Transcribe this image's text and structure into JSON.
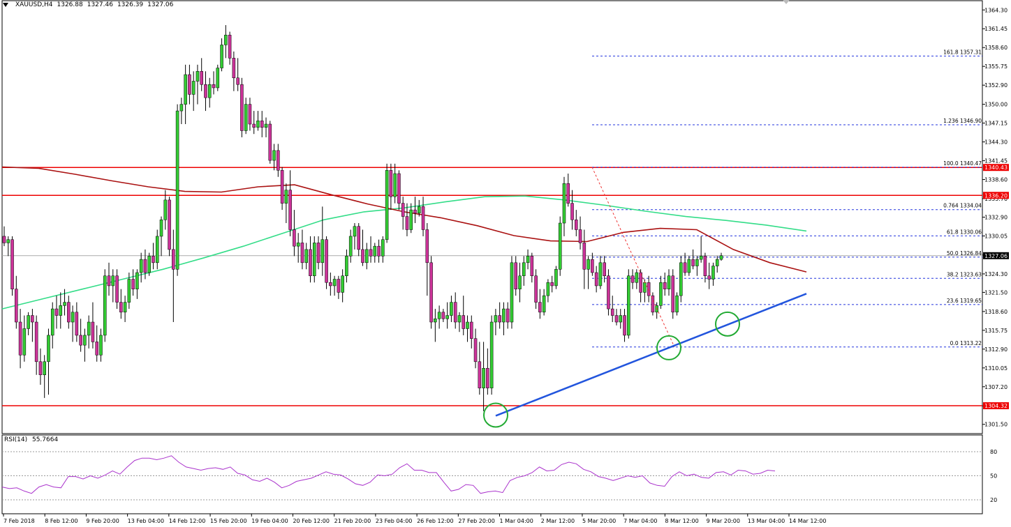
{
  "header": {
    "symbol": "XAUUSD,H4",
    "open": "1326.88",
    "high": "1327.46",
    "low": "1326.39",
    "close": "1327.06"
  },
  "rsi_panel": {
    "name": "RSI(14)",
    "value": "55.7664",
    "levels": [
      80,
      50,
      20
    ]
  },
  "colors": {
    "bull_candle": "#33cc33",
    "bear_candle": "#cc3399",
    "wick": "#000000",
    "sma_green": "#33dd88",
    "sma_red": "#aa1111",
    "level_line": "#ee0000",
    "fib_line": "#2233dd",
    "trend_line": "#2255dd",
    "rsi_line": "#aa33cc",
    "circle": "#22aa33"
  },
  "chart_data": {
    "type": "candlestick",
    "y_range": [
      1300.1,
      1365.7
    ],
    "price_ticks": [
      "1364.30",
      "1361.45",
      "1358.60",
      "1355.75",
      "1352.90",
      "1350.00",
      "1347.15",
      "1344.30",
      "1341.45",
      "1338.60",
      "1335.70",
      "1332.90",
      "1330.05",
      "1327.15",
      "1324.30",
      "1321.50",
      "1318.60",
      "1315.75",
      "1312.90",
      "1310.05",
      "1307.20",
      "1304.30",
      "1301.50"
    ],
    "time_labels": [
      "7 Feb 2018",
      "8 Feb 12:00",
      "9 Feb 20:00",
      "13 Feb 04:00",
      "14 Feb 12:00",
      "15 Feb 20:00",
      "19 Feb 04:00",
      "20 Feb 12:00",
      "21 Feb 20:00",
      "23 Feb 04:00",
      "26 Feb 12:00",
      "27 Feb 20:00",
      "1 Mar 04:00",
      "2 Mar 12:00",
      "5 Mar 20:00",
      "7 Mar 04:00",
      "8 Mar 12:00",
      "9 Mar 20:00",
      "13 Mar 04:00",
      "14 Mar 12:00"
    ],
    "horizontal_levels": [
      {
        "price": 1340.43,
        "label": "1340.43"
      },
      {
        "price": 1336.2,
        "label": "1336.20"
      },
      {
        "price": 1304.32,
        "label": "1304.32"
      }
    ],
    "current_price": {
      "price": 1327.06,
      "label": "1327.06"
    },
    "fibonacci": [
      {
        "price": 1357.31,
        "label": "161.8 1357.31"
      },
      {
        "price": 1346.9,
        "label": "1.236 1346.90"
      },
      {
        "price": 1340.47,
        "label": "100.0 1340.47"
      },
      {
        "price": 1334.04,
        "label": "0.764 1334.04"
      },
      {
        "price": 1330.06,
        "label": "61.8 1330.06"
      },
      {
        "price": 1326.84,
        "label": "50.0 1326.84"
      },
      {
        "price": 1323.63,
        "label": "38.2 1323.63"
      },
      {
        "price": 1319.65,
        "label": "23.6 1319.65"
      },
      {
        "price": 1313.22,
        "label": "0.0 1313.22"
      }
    ],
    "bar_count": 192,
    "ohlc": [
      [
        1330.0,
        1331.5,
        1328.5,
        1329.0
      ],
      [
        1329.0,
        1330.0,
        1327.0,
        1329.5
      ],
      [
        1329.5,
        1330.0,
        1321.0,
        1322.0
      ],
      [
        1322.0,
        1324.0,
        1316.0,
        1317.0
      ],
      [
        1317.0,
        1319.0,
        1310.0,
        1312.0
      ],
      [
        1312.0,
        1318.0,
        1311.0,
        1316.0
      ],
      [
        1316.0,
        1318.5,
        1315.0,
        1318.0
      ],
      [
        1318.0,
        1319.0,
        1314.0,
        1317.0
      ],
      [
        1317.0,
        1318.0,
        1309.0,
        1311.0
      ],
      [
        1311.0,
        1313.0,
        1307.5,
        1309.0
      ],
      [
        1309.0,
        1312.0,
        1305.5,
        1311.0
      ],
      [
        1311.0,
        1316.0,
        1306.0,
        1315.0
      ],
      [
        1315.0,
        1320.0,
        1313.0,
        1319.0
      ],
      [
        1319.0,
        1321.0,
        1316.0,
        1318.0
      ],
      [
        1318.0,
        1321.5,
        1316.0,
        1319.5
      ],
      [
        1319.5,
        1322.0,
        1318.0,
        1320.0
      ],
      [
        1320.0,
        1321.0,
        1316.0,
        1317.0
      ],
      [
        1317.0,
        1319.5,
        1314.0,
        1318.5
      ],
      [
        1318.5,
        1320.0,
        1314.0,
        1315.0
      ],
      [
        1315.0,
        1317.5,
        1312.5,
        1313.5
      ],
      [
        1313.5,
        1316.0,
        1311.0,
        1315.0
      ],
      [
        1315.0,
        1318.0,
        1313.0,
        1317.0
      ],
      [
        1317.0,
        1320.0,
        1313.0,
        1314.0
      ],
      [
        1314.0,
        1316.5,
        1311.0,
        1312.0
      ],
      [
        1312.0,
        1316.0,
        1311.0,
        1315.0
      ],
      [
        1315.0,
        1325.0,
        1314.0,
        1324.0
      ],
      [
        1324.0,
        1326.0,
        1321.0,
        1322.5
      ],
      [
        1322.5,
        1325.0,
        1320.0,
        1324.0
      ],
      [
        1324.0,
        1325.0,
        1319.0,
        1320.0
      ],
      [
        1320.0,
        1322.0,
        1317.5,
        1318.5
      ],
      [
        1318.5,
        1321.0,
        1317.0,
        1320.0
      ],
      [
        1320.0,
        1324.5,
        1319.0,
        1323.5
      ],
      [
        1323.5,
        1325.0,
        1321.0,
        1322.0
      ],
      [
        1322.0,
        1325.0,
        1320.5,
        1324.5
      ],
      [
        1324.5,
        1327.5,
        1323.0,
        1326.5
      ],
      [
        1326.5,
        1328.0,
        1323.5,
        1324.5
      ],
      [
        1324.5,
        1327.5,
        1324.0,
        1327.0
      ],
      [
        1327.0,
        1329.0,
        1325.0,
        1326.0
      ],
      [
        1326.0,
        1331.0,
        1325.0,
        1330.0
      ],
      [
        1330.0,
        1333.0,
        1327.0,
        1332.5
      ],
      [
        1332.5,
        1337.0,
        1331.0,
        1335.5
      ],
      [
        1335.5,
        1336.0,
        1327.0,
        1328.0
      ],
      [
        1328.0,
        1331.0,
        1317.0,
        1325.0
      ],
      [
        1325.0,
        1350.0,
        1324.0,
        1349.0
      ],
      [
        1349.0,
        1351.0,
        1347.0,
        1350.0
      ],
      [
        1350.0,
        1356.0,
        1347.0,
        1354.5
      ],
      [
        1354.5,
        1356.0,
        1350.0,
        1351.5
      ],
      [
        1351.5,
        1355.0,
        1349.0,
        1353.5
      ],
      [
        1353.5,
        1356.0,
        1350.0,
        1355.0
      ],
      [
        1355.0,
        1357.0,
        1352.0,
        1353.0
      ],
      [
        1353.0,
        1355.0,
        1349.0,
        1351.0
      ],
      [
        1351.0,
        1354.0,
        1349.5,
        1353.0
      ],
      [
        1353.0,
        1355.0,
        1351.5,
        1352.5
      ],
      [
        1352.5,
        1356.0,
        1352.0,
        1355.5
      ],
      [
        1355.5,
        1360.0,
        1355.0,
        1359.0
      ],
      [
        1359.0,
        1362.0,
        1357.0,
        1360.5
      ],
      [
        1360.5,
        1361.0,
        1356.0,
        1357.0
      ],
      [
        1357.0,
        1358.0,
        1352.0,
        1354.0
      ],
      [
        1354.0,
        1357.0,
        1352.0,
        1353.0
      ],
      [
        1353.0,
        1354.0,
        1345.0,
        1346.0
      ],
      [
        1346.0,
        1351.0,
        1345.5,
        1350.0
      ],
      [
        1350.0,
        1351.0,
        1346.0,
        1347.0
      ],
      [
        1347.0,
        1349.0,
        1345.5,
        1346.5
      ],
      [
        1346.5,
        1349.0,
        1346.0,
        1347.5
      ],
      [
        1347.5,
        1349.0,
        1345.0,
        1346.5
      ],
      [
        1346.5,
        1348.0,
        1345.0,
        1347.0
      ],
      [
        1347.0,
        1347.5,
        1341.0,
        1341.5
      ],
      [
        1341.5,
        1344.0,
        1340.0,
        1343.0
      ],
      [
        1343.0,
        1344.0,
        1339.0,
        1340.0
      ],
      [
        1340.0,
        1340.5,
        1334.0,
        1335.0
      ],
      [
        1335.0,
        1338.0,
        1332.0,
        1337.0
      ],
      [
        1337.0,
        1340.0,
        1330.0,
        1331.0
      ],
      [
        1331.0,
        1334.0,
        1327.0,
        1328.5
      ],
      [
        1328.5,
        1330.5,
        1326.0,
        1329.0
      ],
      [
        1329.0,
        1331.0,
        1325.0,
        1326.0
      ],
      [
        1326.0,
        1329.0,
        1325.0,
        1328.0
      ],
      [
        1328.0,
        1330.0,
        1323.0,
        1324.0
      ],
      [
        1324.0,
        1330.0,
        1323.0,
        1329.0
      ],
      [
        1329.0,
        1330.0,
        1325.0,
        1326.0
      ],
      [
        1326.0,
        1334.5,
        1324.0,
        1329.5
      ],
      [
        1329.5,
        1330.0,
        1322.0,
        1323.0
      ],
      [
        1323.0,
        1324.5,
        1321.0,
        1322.5
      ],
      [
        1322.5,
        1324.0,
        1321.0,
        1323.5
      ],
      [
        1323.5,
        1324.0,
        1320.5,
        1321.5
      ],
      [
        1321.5,
        1325.0,
        1320.0,
        1324.0
      ],
      [
        1324.0,
        1328.0,
        1323.0,
        1327.0
      ],
      [
        1327.0,
        1331.0,
        1326.0,
        1330.0
      ],
      [
        1330.0,
        1332.0,
        1328.0,
        1331.5
      ],
      [
        1331.5,
        1332.0,
        1327.0,
        1328.0
      ],
      [
        1328.0,
        1331.0,
        1325.5,
        1326.0
      ],
      [
        1326.0,
        1329.0,
        1325.0,
        1328.0
      ],
      [
        1328.0,
        1330.0,
        1326.0,
        1327.0
      ],
      [
        1327.0,
        1329.0,
        1326.0,
        1328.5
      ],
      [
        1328.5,
        1329.5,
        1326.0,
        1327.0
      ],
      [
        1327.0,
        1330.0,
        1326.0,
        1329.5
      ],
      [
        1329.5,
        1341.0,
        1329.0,
        1340.0
      ],
      [
        1340.0,
        1341.0,
        1334.0,
        1336.0
      ],
      [
        1336.0,
        1341.0,
        1335.0,
        1339.5
      ],
      [
        1339.5,
        1340.0,
        1334.0,
        1335.0
      ],
      [
        1335.0,
        1336.0,
        1331.0,
        1333.0
      ],
      [
        1333.0,
        1335.0,
        1330.0,
        1331.0
      ],
      [
        1331.0,
        1335.0,
        1330.5,
        1334.0
      ],
      [
        1334.0,
        1336.0,
        1332.0,
        1333.5
      ],
      [
        1333.5,
        1335.5,
        1333.0,
        1334.5
      ],
      [
        1334.5,
        1336.0,
        1330.0,
        1331.0
      ],
      [
        1331.0,
        1332.0,
        1321.0,
        1326.0
      ],
      [
        1326.0,
        1327.0,
        1316.0,
        1317.0
      ],
      [
        1317.0,
        1319.0,
        1314.0,
        1317.5
      ],
      [
        1317.5,
        1319.5,
        1316.0,
        1318.5
      ],
      [
        1318.5,
        1319.0,
        1317.0,
        1317.5
      ],
      [
        1317.5,
        1320.0,
        1316.0,
        1318.0
      ],
      [
        1318.0,
        1321.0,
        1317.0,
        1320.0
      ],
      [
        1320.0,
        1321.5,
        1316.0,
        1317.0
      ],
      [
        1317.0,
        1318.5,
        1315.5,
        1318.0
      ],
      [
        1318.0,
        1321.0,
        1315.0,
        1316.0
      ],
      [
        1316.0,
        1318.0,
        1314.0,
        1317.0
      ],
      [
        1317.0,
        1318.0,
        1313.0,
        1314.5
      ],
      [
        1314.5,
        1316.0,
        1310.0,
        1311.0
      ],
      [
        1311.0,
        1314.0,
        1306.0,
        1307.0
      ],
      [
        1307.0,
        1314.0,
        1303.5,
        1310.0
      ],
      [
        1310.0,
        1313.0,
        1306.0,
        1307.0
      ],
      [
        1307.0,
        1318.0,
        1306.0,
        1317.0
      ],
      [
        1317.0,
        1319.0,
        1315.0,
        1318.0
      ],
      [
        1318.0,
        1320.0,
        1316.0,
        1317.0
      ],
      [
        1317.0,
        1320.0,
        1315.0,
        1319.0
      ],
      [
        1319.0,
        1320.0,
        1316.0,
        1317.0
      ],
      [
        1317.0,
        1327.0,
        1316.0,
        1326.0
      ],
      [
        1326.0,
        1327.0,
        1321.0,
        1322.0
      ],
      [
        1322.0,
        1326.0,
        1320.0,
        1324.0
      ],
      [
        1324.0,
        1327.0,
        1322.5,
        1326.0
      ],
      [
        1326.0,
        1328.0,
        1325.0,
        1327.0
      ],
      [
        1327.0,
        1327.5,
        1323.0,
        1324.0
      ],
      [
        1324.0,
        1325.0,
        1319.0,
        1320.0
      ],
      [
        1320.0,
        1322.0,
        1317.5,
        1318.5
      ],
      [
        1318.5,
        1322.0,
        1318.0,
        1321.0
      ],
      [
        1321.0,
        1323.5,
        1320.0,
        1323.0
      ],
      [
        1323.0,
        1324.0,
        1321.5,
        1322.5
      ],
      [
        1322.5,
        1325.5,
        1322.0,
        1325.0
      ],
      [
        1325.0,
        1333.0,
        1324.0,
        1332.0
      ],
      [
        1332.0,
        1339.0,
        1330.0,
        1338.0
      ],
      [
        1338.0,
        1339.5,
        1334.5,
        1335.0
      ],
      [
        1335.0,
        1337.0,
        1331.0,
        1332.5
      ],
      [
        1332.5,
        1334.0,
        1330.0,
        1331.0
      ],
      [
        1331.0,
        1333.0,
        1328.0,
        1329.0
      ],
      [
        1329.0,
        1331.0,
        1322.0,
        1325.0
      ],
      [
        1325.0,
        1327.0,
        1322.0,
        1326.5
      ],
      [
        1326.5,
        1327.5,
        1324.0,
        1324.5
      ],
      [
        1324.5,
        1325.5,
        1321.5,
        1322.5
      ],
      [
        1322.5,
        1327.0,
        1322.0,
        1326.0
      ],
      [
        1326.0,
        1327.0,
        1323.0,
        1324.0
      ],
      [
        1324.0,
        1325.0,
        1318.0,
        1319.0
      ],
      [
        1319.0,
        1321.0,
        1317.0,
        1318.0
      ],
      [
        1318.0,
        1319.0,
        1316.5,
        1317.0
      ],
      [
        1317.0,
        1319.0,
        1316.0,
        1318.0
      ],
      [
        1318.0,
        1319.0,
        1314.0,
        1315.0
      ],
      [
        1315.0,
        1325.0,
        1314.5,
        1324.0
      ],
      [
        1324.0,
        1325.0,
        1322.0,
        1323.0
      ],
      [
        1323.0,
        1325.0,
        1322.0,
        1324.5
      ],
      [
        1324.5,
        1325.0,
        1320.0,
        1321.5
      ],
      [
        1321.5,
        1323.5,
        1320.0,
        1323.0
      ],
      [
        1323.0,
        1324.0,
        1320.0,
        1321.0
      ],
      [
        1321.0,
        1321.5,
        1318.0,
        1318.5
      ],
      [
        1318.5,
        1320.0,
        1317.5,
        1319.5
      ],
      [
        1319.5,
        1324.0,
        1319.0,
        1323.0
      ],
      [
        1323.0,
        1324.5,
        1321.0,
        1322.0
      ],
      [
        1322.0,
        1325.0,
        1321.0,
        1324.0
      ],
      [
        1324.0,
        1325.0,
        1317.5,
        1318.5
      ],
      [
        1318.5,
        1321.5,
        1318.0,
        1321.0
      ],
      [
        1321.0,
        1327.0,
        1320.0,
        1326.0
      ],
      [
        1326.0,
        1327.5,
        1324.0,
        1324.5
      ],
      [
        1324.5,
        1327.0,
        1324.0,
        1326.5
      ],
      [
        1326.5,
        1328.0,
        1325.0,
        1325.5
      ],
      [
        1325.5,
        1327.0,
        1324.0,
        1326.5
      ],
      [
        1326.5,
        1330.0,
        1326.0,
        1327.0
      ],
      [
        1327.0,
        1327.5,
        1323.0,
        1324.0
      ],
      [
        1324.0,
        1326.0,
        1322.0,
        1323.5
      ],
      [
        1323.5,
        1326.0,
        1322.5,
        1325.5
      ],
      [
        1325.5,
        1327.0,
        1324.5,
        1326.5
      ],
      [
        1326.5,
        1327.5,
        1326.3,
        1327.06
      ]
    ],
    "sma_green_values": [
      1319.0,
      1320.5,
      1322.0,
      1323.5,
      1325.0,
      1326.7,
      1328.5,
      1330.5,
      1332.5,
      1333.7,
      1334.3,
      1335.2,
      1336.0,
      1336.1,
      1335.5,
      1334.7,
      1333.8,
      1333.0,
      1332.4,
      1331.7,
      1330.8
    ],
    "sma_red_values": [
      1340.5,
      1340.3,
      1339.4,
      1338.4,
      1337.5,
      1336.8,
      1336.7,
      1337.5,
      1337.8,
      1336.3,
      1334.9,
      1333.7,
      1332.8,
      1331.6,
      1330.1,
      1329.3,
      1329.2,
      1330.6,
      1331.2,
      1331.0,
      1328.0,
      1326.0,
      1324.6
    ],
    "rsi_values": [
      36,
      34,
      35,
      31,
      28,
      36,
      39,
      36,
      35,
      49,
      49,
      46,
      50,
      47,
      51,
      56,
      52,
      61,
      69,
      72,
      72,
      70,
      72,
      75,
      67,
      61,
      59,
      57,
      59,
      60,
      58,
      61,
      53,
      51,
      45,
      43,
      47,
      42,
      35,
      38,
      43,
      45,
      47,
      51,
      55,
      52,
      51,
      46,
      40,
      38,
      42,
      51,
      50,
      52,
      60,
      65,
      57,
      57,
      54,
      54,
      42,
      31,
      33,
      39,
      38,
      28,
      30,
      31,
      29,
      44,
      48,
      50,
      54,
      61,
      56,
      57,
      64,
      67,
      65,
      58,
      55,
      49,
      47,
      44,
      47,
      50,
      48,
      50,
      41,
      38,
      37,
      49,
      55,
      50,
      52,
      48,
      47,
      54,
      55,
      51,
      57,
      56,
      52,
      53,
      57,
      56
    ]
  }
}
